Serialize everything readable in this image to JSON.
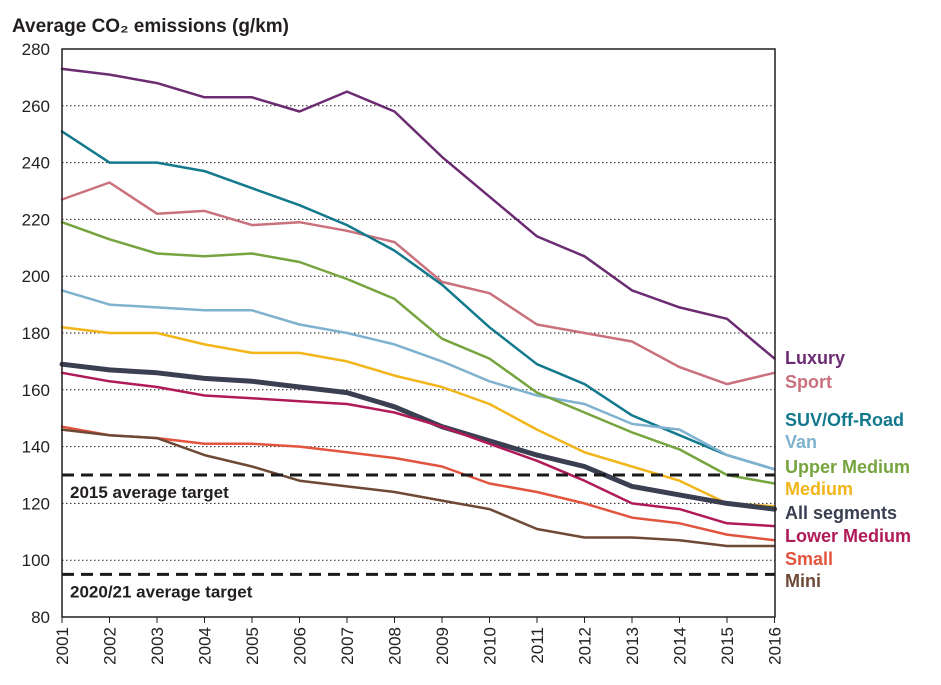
{
  "chart_data": {
    "type": "line",
    "title": "Average CO₂ emissions (g/km)",
    "x": [
      "2001",
      "2002",
      "2003",
      "2004",
      "2005",
      "2006",
      "2007",
      "2008",
      "2009",
      "2010",
      "2011",
      "2012",
      "2013",
      "2014",
      "2015",
      "2016"
    ],
    "ylim": [
      80,
      280
    ],
    "yticks": [
      80,
      100,
      120,
      140,
      160,
      180,
      200,
      220,
      240,
      260,
      280
    ],
    "grid": "horizontal-dotted",
    "legend_placement": "right",
    "series": [
      {
        "name": "Luxury",
        "color": "#6b2c72",
        "width": 2.5,
        "values": [
          273,
          271,
          268,
          263,
          263,
          258,
          265,
          258,
          242,
          228,
          214,
          207,
          195,
          189,
          185,
          171
        ]
      },
      {
        "name": "Sport",
        "color": "#c9717c",
        "width": 2.5,
        "values": [
          227,
          233,
          222,
          223,
          218,
          219,
          216,
          212,
          198,
          194,
          183,
          180,
          177,
          168,
          162,
          166
        ]
      },
      {
        "name": "SUV/Off-Road",
        "color": "#13798d",
        "width": 2.5,
        "values": [
          251,
          240,
          240,
          237,
          231,
          225,
          218,
          209,
          197,
          182,
          169,
          162,
          151,
          144,
          137,
          132
        ]
      },
      {
        "name": "Van",
        "color": "#7fb2cf",
        "width": 2.5,
        "values": [
          195,
          190,
          189,
          188,
          188,
          183,
          180,
          176,
          170,
          163,
          158,
          155,
          148,
          146,
          137,
          132
        ]
      },
      {
        "name": "Upper Medium",
        "color": "#76a43e",
        "width": 2.5,
        "values": [
          219,
          213,
          208,
          207,
          208,
          205,
          199,
          192,
          178,
          171,
          159,
          152,
          145,
          139,
          130,
          127
        ]
      },
      {
        "name": "Medium",
        "color": "#f2b51a",
        "width": 2.5,
        "values": [
          182,
          180,
          180,
          176,
          173,
          173,
          170,
          165,
          161,
          155,
          146,
          138,
          133,
          128,
          120,
          119
        ]
      },
      {
        "name": "All segments",
        "color": "#3a3f52",
        "width": 5,
        "values": [
          169,
          167,
          166,
          164,
          163,
          161,
          159,
          154,
          147,
          142,
          137,
          133,
          126,
          123,
          120,
          118
        ]
      },
      {
        "name": "Lower Medium",
        "color": "#b01a58",
        "width": 2.5,
        "values": [
          166,
          163,
          161,
          158,
          157,
          156,
          155,
          152,
          147,
          141,
          135,
          128,
          120,
          118,
          113,
          112
        ]
      },
      {
        "name": "Small",
        "color": "#e2543e",
        "width": 2.5,
        "values": [
          147,
          144,
          143,
          141,
          141,
          140,
          138,
          136,
          133,
          127,
          124,
          120,
          115,
          113,
          109,
          107
        ]
      },
      {
        "name": "Mini",
        "color": "#6e4a36",
        "width": 2.5,
        "values": [
          146,
          144,
          143,
          137,
          133,
          128,
          126,
          124,
          121,
          118,
          111,
          108,
          108,
          107,
          105,
          105
        ]
      }
    ],
    "annotations": [
      {
        "text": "2015 average target",
        "y": 130
      },
      {
        "text": "2020/21 average target",
        "y": 95
      }
    ]
  }
}
